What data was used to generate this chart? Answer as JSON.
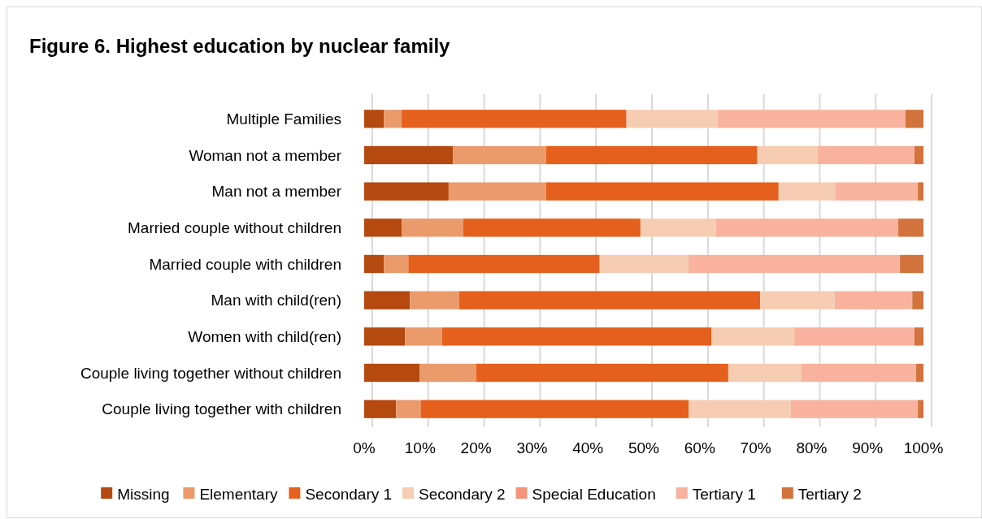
{
  "chart_data": {
    "type": "bar",
    "title": "Figure 6. Highest education by nuclear family",
    "orientation": "horizontal",
    "stacked": true,
    "categories": [
      "Multiple Families",
      "Woman not a member",
      "Man not a member",
      "Married couple without children",
      "Married couple with children",
      "Man with child(ren)",
      "Women with child(ren)",
      "Couple living together without children",
      "Couple living together with children"
    ],
    "series": [
      {
        "name": "Missing",
        "color": "#b5490f",
        "values": [
          3.5,
          15.9,
          15.1,
          6.7,
          3.5,
          8.2,
          7.3,
          9.9,
          5.7
        ]
      },
      {
        "name": "Elementary",
        "color": "#eb9a6c",
        "values": [
          3.2,
          16.6,
          17.4,
          11.0,
          4.4,
          8.8,
          6.6,
          10.1,
          4.4
        ]
      },
      {
        "name": "Secondary 1",
        "color": "#e5601c",
        "values": [
          40.2,
          37.8,
          41.6,
          31.7,
          34.2,
          53.8,
          48.2,
          45.1,
          47.9
        ]
      },
      {
        "name": "Secondary 2",
        "color": "#f6cdb3",
        "values": [
          16.3,
          10.8,
          10.1,
          13.5,
          15.9,
          13.3,
          14.8,
          13.0,
          18.3
        ]
      },
      {
        "name": "Special Education",
        "color": "#f4957a",
        "values": [
          0,
          0,
          0,
          0,
          0,
          0,
          0,
          0,
          0
        ]
      },
      {
        "name": "Tertiary 1",
        "color": "#f9b29e",
        "values": [
          33.6,
          17.3,
          14.8,
          32.6,
          37.8,
          13.9,
          21.5,
          20.6,
          22.7
        ]
      },
      {
        "name": "Tertiary 2",
        "color": "#d2733d",
        "values": [
          3.2,
          1.6,
          1.0,
          4.5,
          4.2,
          2.0,
          1.6,
          1.3,
          1.0
        ]
      }
    ],
    "xlim": [
      0,
      100
    ],
    "xticks": [
      {
        "value": 0,
        "label": "0%"
      },
      {
        "value": 10,
        "label": "10%"
      },
      {
        "value": 20,
        "label": "20%"
      },
      {
        "value": 30,
        "label": "30%"
      },
      {
        "value": 40,
        "label": "40%"
      },
      {
        "value": 50,
        "label": "50%"
      },
      {
        "value": 60,
        "label": "60%"
      },
      {
        "value": 70,
        "label": "70%"
      },
      {
        "value": 80,
        "label": "80%"
      },
      {
        "value": 90,
        "label": "90%"
      },
      {
        "value": 100,
        "label": "100%"
      }
    ],
    "grid": "x",
    "legend": "bottom"
  }
}
